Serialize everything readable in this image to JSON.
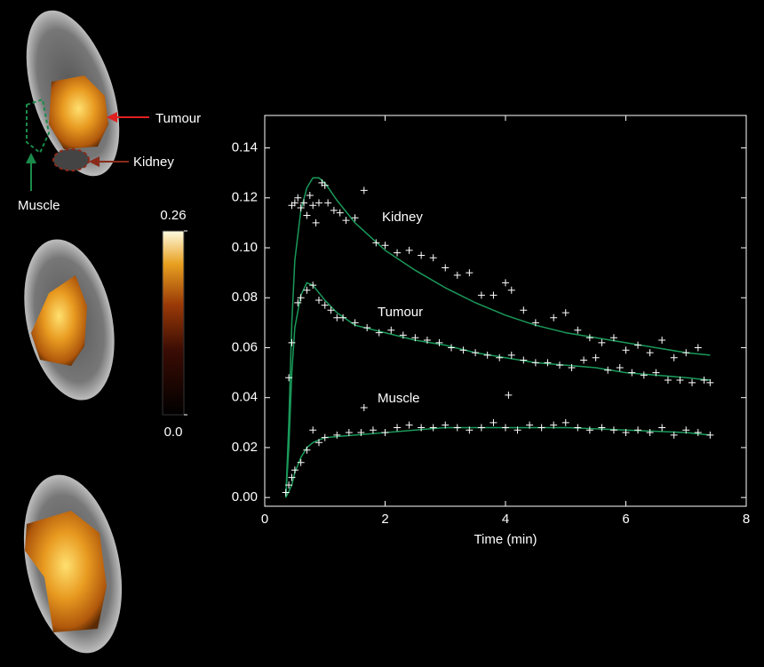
{
  "chart_data": {
    "type": "scatter",
    "x_label": "Time (min)",
    "xlim": [
      0,
      8
    ],
    "xticks": [
      0,
      2,
      4,
      6,
      8
    ],
    "ylim": [
      -0.0035,
      0.153
    ],
    "yticks": [
      {
        "value": 0,
        "label": "0.00"
      },
      0.02,
      0.04,
      0.06,
      0.08,
      {
        "value": 0.1,
        "label": "0.10"
      },
      0.12,
      0.14
    ],
    "series": [
      {
        "name": "Kidney",
        "color": "#ffffff",
        "x": [
          0.45,
          0.5,
          0.55,
          0.6,
          0.65,
          0.7,
          0.75,
          0.8,
          0.85,
          0.9,
          0.95,
          1.0,
          1.05,
          1.15,
          1.25,
          1.35,
          1.5,
          1.65,
          1.85,
          2.0,
          2.2,
          2.4,
          2.6,
          2.8,
          3.0,
          3.2,
          3.4,
          3.6,
          3.8,
          4.0,
          4.1,
          4.3,
          4.5,
          4.8,
          5.0,
          5.2,
          5.4,
          5.6,
          5.8,
          6.0,
          6.2,
          6.4,
          6.6,
          6.8,
          7.0,
          7.2,
          7.4
        ],
        "values": [
          0.117,
          0.118,
          0.12,
          0.116,
          0.118,
          0.113,
          0.121,
          0.117,
          0.11,
          0.118,
          0.126,
          0.125,
          0.118,
          0.115,
          0.114,
          0.111,
          0.112,
          0.123,
          0.102,
          0.101,
          0.098,
          0.099,
          0.097,
          0.096,
          0.092,
          0.089,
          0.09,
          0.081,
          0.081,
          0.086,
          0.083,
          0.075,
          0.07,
          0.072,
          0.074,
          0.067,
          0.064,
          0.062,
          0.064,
          0.059,
          0.061,
          0.058,
          0.063,
          0.056,
          0.058,
          0.06,
          0.046
        ]
      },
      {
        "name": "Tumour",
        "color": "#ffffff",
        "x": [
          0.4,
          0.45,
          0.55,
          0.6,
          0.7,
          0.8,
          0.9,
          1.0,
          1.1,
          1.2,
          1.3,
          1.5,
          1.7,
          1.9,
          2.1,
          2.3,
          2.5,
          2.7,
          2.9,
          3.1,
          3.3,
          3.5,
          3.7,
          3.9,
          4.1,
          4.3,
          4.5,
          4.7,
          4.9,
          5.1,
          5.3,
          5.5,
          5.7,
          5.9,
          6.1,
          6.3,
          6.5,
          6.7,
          6.9,
          7.1,
          7.3
        ],
        "values": [
          0.048,
          0.062,
          0.078,
          0.08,
          0.083,
          0.085,
          0.079,
          0.077,
          0.075,
          0.072,
          0.072,
          0.07,
          0.068,
          0.066,
          0.067,
          0.065,
          0.064,
          0.063,
          0.062,
          0.06,
          0.059,
          0.058,
          0.057,
          0.056,
          0.057,
          0.055,
          0.054,
          0.054,
          0.053,
          0.052,
          0.055,
          0.056,
          0.051,
          0.052,
          0.05,
          0.049,
          0.05,
          0.047,
          0.047,
          0.046,
          0.047
        ]
      },
      {
        "name": "Muscle",
        "color": "#ffffff",
        "x": [
          0.35,
          0.4,
          0.45,
          0.5,
          0.6,
          0.7,
          0.8,
          0.9,
          1.0,
          1.2,
          1.4,
          1.6,
          1.65,
          1.8,
          2.0,
          2.2,
          2.4,
          2.6,
          2.8,
          3.0,
          3.2,
          3.4,
          3.6,
          3.8,
          4.0,
          4.05,
          4.2,
          4.4,
          4.6,
          4.8,
          5.0,
          5.2,
          5.4,
          5.6,
          5.8,
          6.0,
          6.2,
          6.4,
          6.6,
          6.8,
          7.0,
          7.2,
          7.4
        ],
        "values": [
          0.002,
          0.005,
          0.008,
          0.011,
          0.014,
          0.019,
          0.027,
          0.022,
          0.024,
          0.025,
          0.026,
          0.026,
          0.036,
          0.027,
          0.026,
          0.028,
          0.029,
          0.028,
          0.028,
          0.029,
          0.028,
          0.027,
          0.028,
          0.03,
          0.028,
          0.041,
          0.027,
          0.029,
          0.028,
          0.029,
          0.03,
          0.028,
          0.027,
          0.028,
          0.027,
          0.026,
          0.027,
          0.026,
          0.028,
          0.025,
          0.027,
          0.026,
          0.025
        ]
      }
    ],
    "fits": [
      {
        "color": "#1a9a5a",
        "x": [
          0.35,
          0.4,
          0.45,
          0.5,
          0.6,
          0.7,
          0.8,
          0.9,
          1.0,
          1.2,
          1.5,
          2,
          2.5,
          3,
          3.5,
          4,
          4.5,
          5,
          5.5,
          6,
          6.5,
          7,
          7.4
        ],
        "values": [
          0,
          0.03,
          0.07,
          0.095,
          0.115,
          0.124,
          0.128,
          0.128,
          0.126,
          0.119,
          0.11,
          0.099,
          0.091,
          0.084,
          0.078,
          0.073,
          0.069,
          0.066,
          0.064,
          0.062,
          0.06,
          0.058,
          0.057
        ]
      },
      {
        "color": "#1a9a5a",
        "x": [
          0.35,
          0.4,
          0.45,
          0.5,
          0.6,
          0.7,
          0.8,
          1.0,
          1.2,
          1.5,
          2,
          2.5,
          3,
          3.5,
          4,
          4.5,
          5,
          5.5,
          6,
          6.5,
          7,
          7.4
        ],
        "values": [
          0,
          0.02,
          0.05,
          0.068,
          0.081,
          0.086,
          0.085,
          0.079,
          0.074,
          0.069,
          0.066,
          0.063,
          0.061,
          0.058,
          0.056,
          0.054,
          0.053,
          0.052,
          0.05,
          0.049,
          0.048,
          0.047
        ]
      },
      {
        "color": "#1a9a5a",
        "x": [
          0.35,
          0.45,
          0.5,
          0.6,
          0.7,
          0.8,
          1,
          1.5,
          2,
          2.5,
          3,
          3.5,
          4,
          5,
          6,
          7,
          7.4
        ],
        "values": [
          0,
          0.005,
          0.01,
          0.016,
          0.02,
          0.022,
          0.024,
          0.025,
          0.026,
          0.027,
          0.028,
          0.028,
          0.028,
          0.028,
          0.027,
          0.026,
          0.025
        ]
      }
    ]
  },
  "images": {
    "labels": [
      "Tumour",
      "Kidney",
      "Muscle"
    ]
  },
  "colorbar": {
    "ticks": [
      0.26,
      {
        "value": 0,
        "label": "0.0"
      }
    ]
  }
}
